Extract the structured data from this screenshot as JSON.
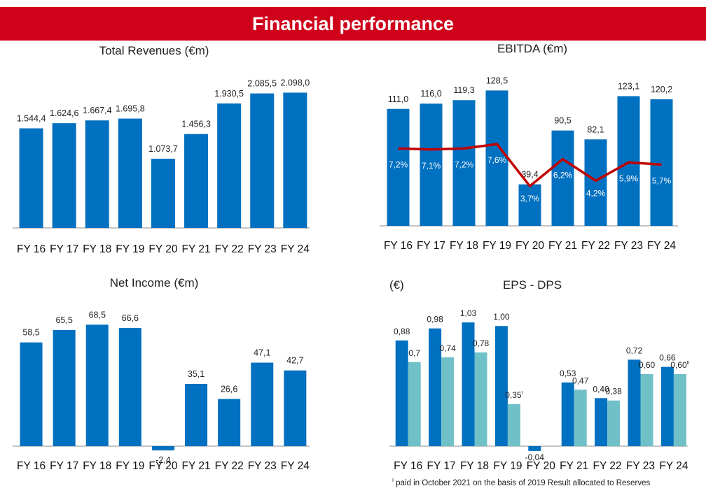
{
  "header": {
    "title": "Financial performance"
  },
  "colors": {
    "banner": "#d0021b",
    "bar": "#0070c0",
    "dps_bar": "#70c0c8",
    "margin_line": "#c00000",
    "axis": "#8c8c8c"
  },
  "chart_data": [
    {
      "type": "bar",
      "title": "Total Revenues (€m)",
      "categories": [
        "FY 16",
        "FY 17",
        "FY 18",
        "FY 19",
        "FY 20",
        "FY 21",
        "FY 22",
        "FY 23",
        "FY 24"
      ],
      "values": [
        1544.4,
        1624.6,
        1667.4,
        1695.8,
        1073.7,
        1456.3,
        1930.5,
        2085.5,
        2098.0
      ],
      "labels": [
        "1.544,4",
        "1.624,6",
        "1.667,4",
        "1.695,8",
        "1.073,7",
        "1.456,3",
        "1.930,5",
        "2.085,5",
        "2.098,0"
      ],
      "ylim": [
        0,
        2450
      ]
    },
    {
      "type": "bar",
      "title": "EBITDA (€m)",
      "categories": [
        "FY 16",
        "FY 17",
        "FY 18",
        "FY 19",
        "FY 20",
        "FY 21",
        "FY 22",
        "FY 23",
        "FY 24"
      ],
      "values": [
        111.0,
        116.0,
        119.3,
        128.5,
        39.4,
        90.5,
        82.1,
        123.1,
        120.2
      ],
      "labels": [
        "111,0",
        "116,0",
        "119,3",
        "128,5",
        "39,4",
        "90,5",
        "82,1",
        "123,1",
        "120,2"
      ],
      "margin": {
        "type": "line",
        "values": [
          7.2,
          7.1,
          7.2,
          7.6,
          3.7,
          6.2,
          4.2,
          5.9,
          5.7
        ],
        "labels": [
          "7,2%",
          "7,1%",
          "7,2%",
          "7,6%",
          "3,7%",
          "6,2%",
          "4,2%",
          "5,9%",
          "5,7%"
        ],
        "ylim": [
          0,
          14.5
        ]
      },
      "ylim": [
        0,
        148
      ]
    },
    {
      "type": "bar",
      "title": "Net Income (€m)",
      "categories": [
        "FY 16",
        "FY 17",
        "FY 18",
        "FY 19",
        "FY 20",
        "FY 21",
        "FY 22",
        "FY 23",
        "FY 24"
      ],
      "values": [
        58.5,
        65.5,
        68.5,
        66.6,
        -2.4,
        35.1,
        26.6,
        47.1,
        42.7
      ],
      "labels": [
        "58,5",
        "65,5",
        "68,5",
        "66,6",
        "-2,4",
        "35,1",
        "26,6",
        "47,1",
        "42,7"
      ],
      "ylim": [
        -3,
        84
      ]
    },
    {
      "type": "bar",
      "title": "EPS - DPS",
      "unit": "(€)",
      "categories": [
        "FY 16",
        "FY 17",
        "FY 18",
        "FY 19",
        "FY 20",
        "FY 21",
        "FY 22",
        "FY 23",
        "FY 24"
      ],
      "series": [
        {
          "values": [
            0.88,
            0.98,
            1.03,
            1.0,
            -0.04,
            0.53,
            0.4,
            0.72,
            0.66
          ],
          "labels": [
            "0,88",
            "0,98",
            "1,03",
            "1,00",
            "-0,04",
            "0,53",
            "0,40",
            "0,72",
            "0,66"
          ]
        },
        {
          "values": [
            0.7,
            0.74,
            0.78,
            0.35,
            null,
            0.47,
            0.38,
            0.6,
            0.6
          ],
          "labels": [
            "0,7",
            "0,74",
            "0,78",
            "0,35",
            "",
            "0,47",
            "0,38",
            "0,60",
            "0,60"
          ],
          "marks": [
            "",
            "",
            "",
            "I",
            "",
            "",
            "",
            "",
            "II"
          ]
        }
      ],
      "ylim": [
        -0.05,
        1.24
      ]
    }
  ],
  "footnote": {
    "mark": "I",
    "text": "paid in October 2021 on the basis of 2019 Result allocated to Reserves"
  }
}
